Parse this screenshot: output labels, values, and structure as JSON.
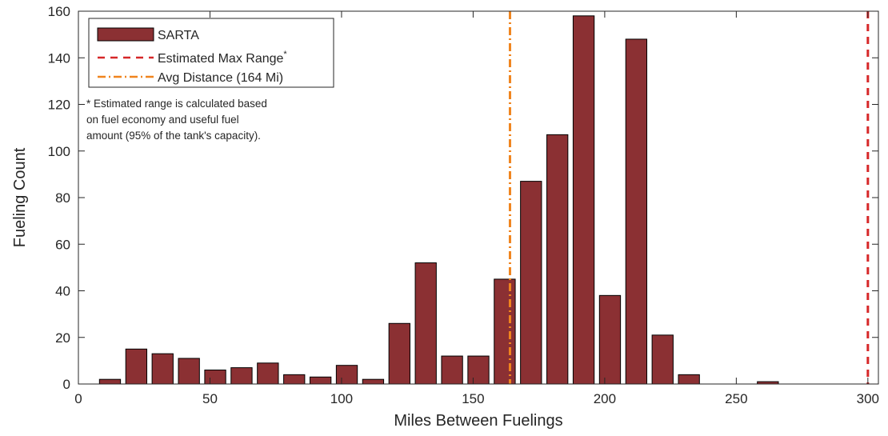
{
  "chart_data": {
    "type": "bar",
    "xlabel": "Miles Between Fuelings",
    "ylabel": "Fueling Count",
    "xlim": [
      0,
      304
    ],
    "ylim": [
      0,
      160
    ],
    "xticks": [
      0,
      50,
      100,
      150,
      200,
      250,
      300
    ],
    "yticks": [
      0,
      20,
      40,
      60,
      80,
      100,
      120,
      140,
      160
    ],
    "grid": false,
    "legend_position": "top-left",
    "bar_width": 8,
    "series": [
      {
        "name": "SARTA",
        "color": "#8B3033",
        "x": [
          12,
          22,
          32,
          42,
          52,
          62,
          72,
          82,
          92,
          102,
          112,
          122,
          132,
          142,
          152,
          162,
          172,
          182,
          192,
          202,
          212,
          222,
          232,
          242,
          252,
          262
        ],
        "values": [
          2,
          15,
          13,
          11,
          6,
          7,
          9,
          4,
          3,
          8,
          2,
          26,
          52,
          12,
          12,
          45,
          87,
          107,
          158,
          38,
          148,
          21,
          4,
          0,
          0,
          1
        ]
      }
    ],
    "reference_lines": [
      {
        "name": "Estimated Max Range",
        "superscript": "*",
        "x": 300,
        "color": "#D62728",
        "style": "dashed"
      },
      {
        "name": "Avg Distance (164 Mi)",
        "x": 164,
        "color": "#F0841E",
        "style": "dashdot"
      }
    ],
    "annotation": [
      "* Estimated range is calculated based",
      "on fuel economy and useful fuel",
      "amount (95% of the tank's capacity)."
    ]
  }
}
